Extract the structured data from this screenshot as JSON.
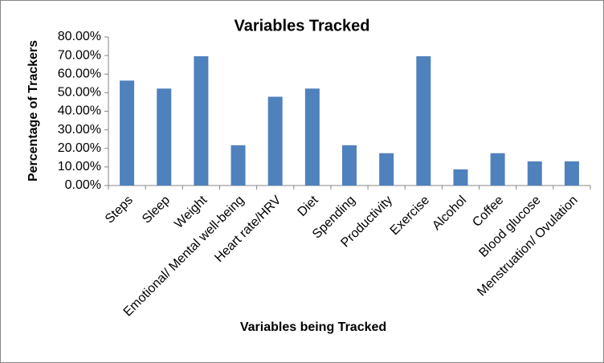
{
  "chart_data": {
    "type": "bar",
    "title": "Variables Tracked",
    "x_label": "Variables being Tracked",
    "y_label": "Percentage of Trackers",
    "categories": [
      "Steps",
      "Sleep",
      "Weight",
      "Emotional/ Mental well-being",
      "Heart rate/HRV",
      "Diet",
      "Spending",
      "Productivity",
      "Exercise",
      "Alcohol",
      "Coffee",
      "Blood glucose",
      "Menstruation/ Ovulation"
    ],
    "values": [
      56.5,
      52.2,
      69.6,
      21.7,
      47.8,
      52.2,
      21.7,
      17.4,
      69.6,
      8.7,
      17.4,
      13.0,
      13.0
    ],
    "color": "#4f81bd",
    "ylim": [
      0,
      80
    ],
    "yticks": [
      {
        "value": 0,
        "label": "0.00%"
      },
      {
        "value": 10,
        "label": "10.00%"
      },
      {
        "value": 20,
        "label": "20.00%"
      },
      {
        "value": 30,
        "label": "30.00%"
      },
      {
        "value": 40,
        "label": "40.00%"
      },
      {
        "value": 50,
        "label": "50.00%"
      },
      {
        "value": 60,
        "label": "60.00%"
      },
      {
        "value": 70,
        "label": "70.00%"
      },
      {
        "value": 80,
        "label": "80.00%"
      }
    ],
    "grid": false
  }
}
